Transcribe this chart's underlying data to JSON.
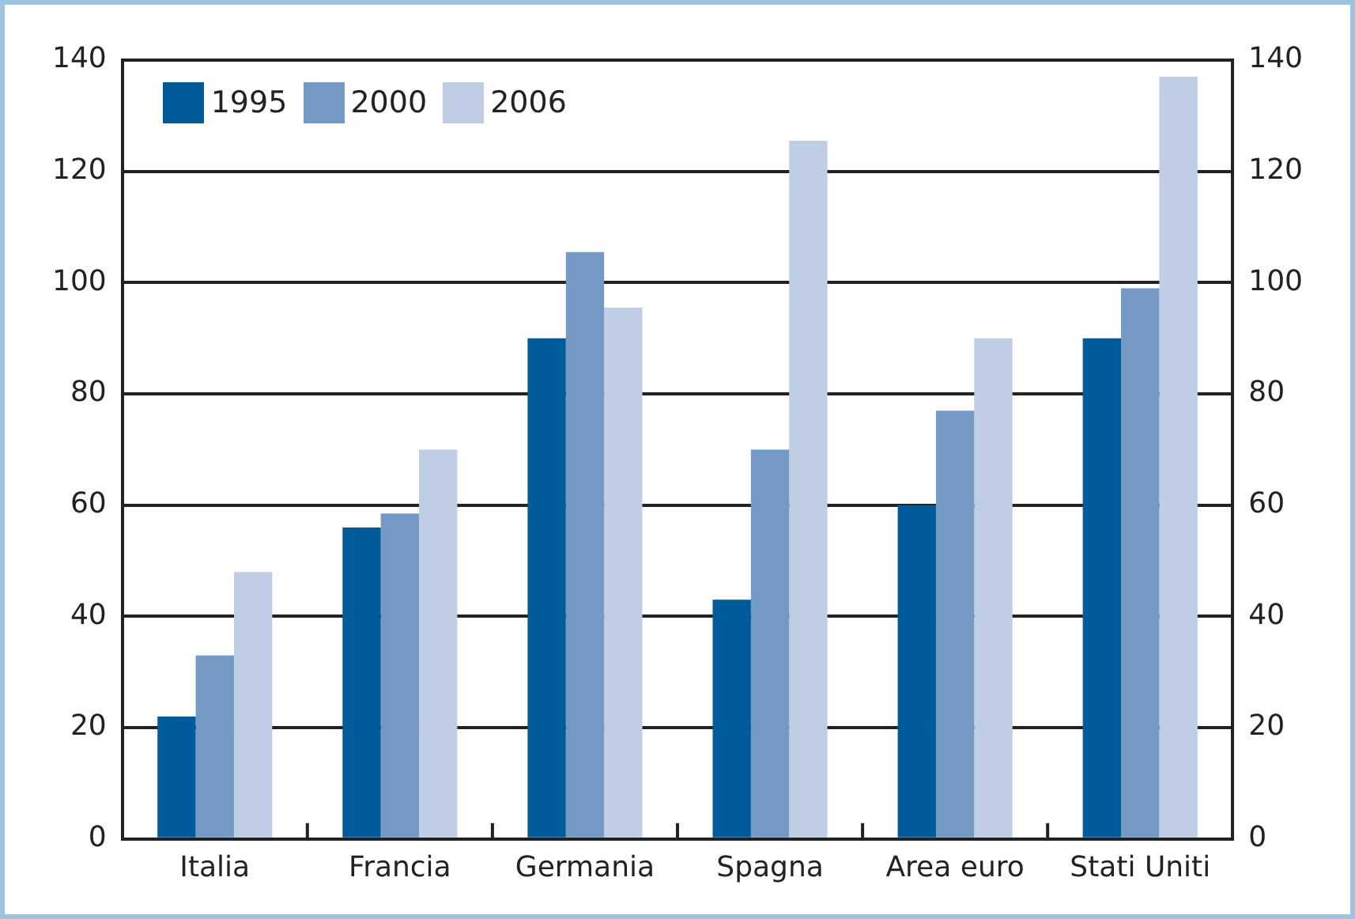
{
  "chart_data": {
    "type": "bar",
    "categories": [
      "Italia",
      "Francia",
      "Germania",
      "Spagna",
      "Area euro",
      "Stati Uniti"
    ],
    "series": [
      {
        "name": "1995",
        "color": "#005b9a",
        "values": [
          22,
          56,
          90,
          43,
          60,
          90
        ]
      },
      {
        "name": "2000",
        "color": "#7499c4",
        "values": [
          33,
          58.5,
          105.5,
          70,
          77,
          99
        ]
      },
      {
        "name": "2006",
        "color": "#bfcee4",
        "values": [
          48,
          70,
          95.5,
          125.5,
          90,
          137
        ]
      }
    ],
    "ylim": [
      0,
      140
    ],
    "yticks": [
      0,
      20,
      40,
      60,
      80,
      100,
      120,
      140
    ],
    "y2lim": [
      0,
      140
    ],
    "y2ticks": [
      0,
      20,
      40,
      60,
      80,
      100,
      120,
      140
    ],
    "grid": "y",
    "legend": "top left"
  }
}
